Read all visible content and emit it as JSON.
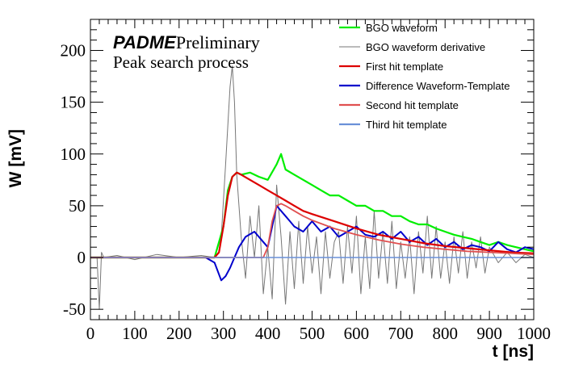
{
  "chart_data": {
    "type": "line",
    "title": "",
    "annotation": {
      "brand": "PADME",
      "tag": "Preliminary",
      "subtitle": "Peak search process"
    },
    "xlabel": "t [ns]",
    "ylabel": "W [mV]",
    "xlim": [
      0,
      1000
    ],
    "ylim": [
      -60,
      230
    ],
    "x_ticks": [
      0,
      100,
      200,
      300,
      400,
      500,
      600,
      700,
      800,
      900,
      1000
    ],
    "y_ticks": [
      -50,
      0,
      50,
      100,
      150,
      200
    ],
    "grid": false,
    "legend_position": "top-right",
    "series": [
      {
        "name": "BGO waveform",
        "color": "#00ee00",
        "x": [
          0,
          100,
          200,
          280,
          300,
          310,
          320,
          330,
          340,
          360,
          380,
          400,
          420,
          430,
          440,
          460,
          480,
          500,
          520,
          540,
          560,
          580,
          600,
          620,
          640,
          660,
          680,
          700,
          720,
          740,
          760,
          780,
          800,
          820,
          840,
          860,
          880,
          900,
          920,
          940,
          960,
          980,
          1000
        ],
        "y": [
          0,
          0,
          0,
          0,
          30,
          65,
          78,
          82,
          80,
          82,
          78,
          75,
          90,
          100,
          85,
          80,
          75,
          70,
          65,
          60,
          60,
          55,
          50,
          50,
          45,
          45,
          40,
          40,
          35,
          32,
          32,
          28,
          25,
          22,
          20,
          18,
          15,
          12,
          15,
          12,
          10,
          8,
          6
        ]
      },
      {
        "name": "BGO waveform derivative",
        "color": "#777777",
        "x": [
          0,
          15,
          20,
          25,
          30,
          60,
          100,
          150,
          200,
          250,
          280,
          295,
          305,
          315,
          320,
          325,
          330,
          340,
          350,
          360,
          370,
          380,
          390,
          400,
          410,
          420,
          430,
          440,
          450,
          460,
          470,
          480,
          490,
          500,
          510,
          520,
          530,
          540,
          550,
          560,
          570,
          580,
          590,
          600,
          610,
          620,
          630,
          640,
          650,
          660,
          670,
          680,
          690,
          700,
          710,
          720,
          730,
          740,
          750,
          760,
          770,
          780,
          790,
          800,
          810,
          820,
          830,
          840,
          850,
          860,
          870,
          880,
          890,
          900,
          920,
          940,
          960,
          980,
          1000
        ],
        "y": [
          0,
          0,
          -50,
          5,
          0,
          2,
          -2,
          3,
          0,
          2,
          0,
          20,
          90,
          165,
          185,
          150,
          80,
          20,
          -20,
          40,
          0,
          50,
          -35,
          10,
          -40,
          70,
          20,
          -45,
          25,
          -30,
          35,
          -25,
          30,
          -15,
          20,
          -35,
          25,
          -20,
          15,
          25,
          -25,
          30,
          -15,
          40,
          -35,
          20,
          -30,
          45,
          -20,
          25,
          -25,
          35,
          -30,
          15,
          -20,
          20,
          -35,
          25,
          -15,
          40,
          -20,
          30,
          -20,
          15,
          -25,
          20,
          -15,
          25,
          -20,
          15,
          -10,
          20,
          -15,
          10,
          -5,
          5,
          -5,
          3,
          0
        ]
      },
      {
        "name": "First hit template",
        "color": "#dd0000",
        "x": [
          0,
          280,
          290,
          300,
          310,
          320,
          330,
          340,
          360,
          380,
          400,
          420,
          440,
          460,
          480,
          500,
          550,
          600,
          650,
          700,
          750,
          800,
          850,
          900,
          950,
          1000
        ],
        "y": [
          0,
          0,
          5,
          30,
          60,
          78,
          82,
          80,
          75,
          70,
          65,
          60,
          55,
          50,
          45,
          42,
          35,
          28,
          22,
          18,
          14,
          11,
          9,
          7,
          5,
          4
        ]
      },
      {
        "name": "Difference Waveform-Template",
        "color": "#0000cc",
        "x": [
          0,
          100,
          200,
          260,
          280,
          295,
          305,
          315,
          325,
          335,
          350,
          370,
          390,
          400,
          410,
          420,
          430,
          440,
          450,
          460,
          480,
          500,
          520,
          540,
          560,
          580,
          600,
          620,
          640,
          660,
          680,
          700,
          720,
          740,
          760,
          780,
          800,
          820,
          840,
          860,
          880,
          900,
          920,
          940,
          960,
          980,
          1000
        ],
        "y": [
          0,
          0,
          0,
          0,
          -5,
          -22,
          -18,
          -10,
          0,
          10,
          20,
          25,
          15,
          10,
          30,
          50,
          45,
          40,
          35,
          30,
          25,
          35,
          25,
          30,
          20,
          25,
          30,
          22,
          20,
          25,
          18,
          25,
          15,
          20,
          12,
          18,
          10,
          15,
          8,
          12,
          10,
          6,
          15,
          8,
          5,
          10,
          8
        ]
      },
      {
        "name": "Second hit template",
        "color": "#e05050",
        "x": [
          0,
          390,
          400,
          410,
          420,
          430,
          440,
          460,
          480,
          500,
          550,
          600,
          650,
          700,
          750,
          800,
          850,
          900,
          950,
          1000
        ],
        "y": [
          0,
          0,
          10,
          35,
          50,
          52,
          50,
          45,
          40,
          36,
          28,
          22,
          17,
          13,
          10,
          8,
          6,
          5,
          4,
          3
        ]
      },
      {
        "name": "Third hit template",
        "color": "#6a90d8",
        "x": [
          0,
          1000
        ],
        "y": [
          0,
          0
        ]
      }
    ]
  }
}
